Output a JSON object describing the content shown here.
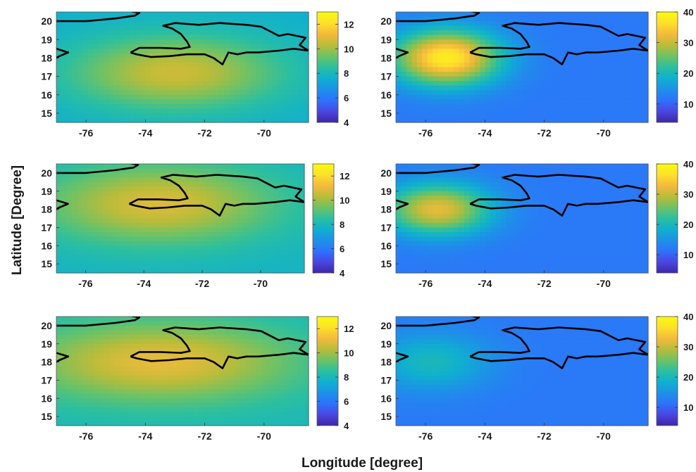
{
  "figure": {
    "xlabel": "Longitude [degree]",
    "ylabel": "Latitude [Degree]"
  },
  "chart_data": [
    {
      "type": "heatmap",
      "panel": "row1-left",
      "xlim": [
        -77,
        -68.5
      ],
      "ylim": [
        14.5,
        20.5
      ],
      "x_ticks": [
        "-76",
        "-74",
        "-72",
        "-70"
      ],
      "y_ticks": [
        "15",
        "16",
        "17",
        "18",
        "19",
        "20"
      ],
      "colorbar": {
        "min": 4,
        "max": 13,
        "ticks": [
          "4",
          "6",
          "8",
          "10",
          "12"
        ]
      },
      "field": {
        "base": 7.6,
        "peaks": [
          {
            "lon": -73.0,
            "lat": 17.2,
            "amp": 3.0,
            "sx": 3.5,
            "sy": 2.0
          }
        ]
      }
    },
    {
      "type": "heatmap",
      "panel": "row1-right",
      "xlim": [
        -77,
        -68.5
      ],
      "ylim": [
        14.5,
        20.5
      ],
      "x_ticks": [
        "-76",
        "-74",
        "-72",
        "-70"
      ],
      "y_ticks": [
        "15",
        "16",
        "17",
        "18",
        "19",
        "20"
      ],
      "colorbar": {
        "min": 4,
        "max": 40,
        "ticks": [
          "10",
          "20",
          "30",
          "40"
        ]
      },
      "field": {
        "base": 12,
        "peaks": [
          {
            "lon": -75.3,
            "lat": 18.0,
            "amp": 26,
            "sx": 1.8,
            "sy": 1.5
          }
        ]
      }
    },
    {
      "type": "heatmap",
      "panel": "row2-left",
      "xlim": [
        -77,
        -68.5
      ],
      "ylim": [
        14.5,
        20.5
      ],
      "x_ticks": [
        "-76",
        "-74",
        "-72",
        "-70"
      ],
      "y_ticks": [
        "15",
        "16",
        "17",
        "18",
        "19",
        "20"
      ],
      "colorbar": {
        "min": 4,
        "max": 13,
        "ticks": [
          "4",
          "6",
          "8",
          "10",
          "12"
        ]
      },
      "field": {
        "base": 7.8,
        "peaks": [
          {
            "lon": -73.5,
            "lat": 18.3,
            "amp": 3.0,
            "sx": 4.0,
            "sy": 2.2
          }
        ]
      }
    },
    {
      "type": "heatmap",
      "panel": "row2-right",
      "xlim": [
        -77,
        -68.5
      ],
      "ylim": [
        14.5,
        20.5
      ],
      "x_ticks": [
        "-76",
        "-74",
        "-72",
        "-70"
      ],
      "y_ticks": [
        "15",
        "16",
        "17",
        "18",
        "19",
        "20"
      ],
      "colorbar": {
        "min": 4,
        "max": 40,
        "ticks": [
          "10",
          "20",
          "30",
          "40"
        ]
      },
      "field": {
        "base": 12,
        "peaks": [
          {
            "lon": -75.6,
            "lat": 18.0,
            "amp": 20,
            "sx": 1.8,
            "sy": 1.4
          }
        ]
      }
    },
    {
      "type": "heatmap",
      "panel": "row3-left",
      "xlim": [
        -77,
        -68.5
      ],
      "ylim": [
        14.5,
        20.5
      ],
      "x_ticks": [
        "-76",
        "-74",
        "-72",
        "-70"
      ],
      "y_ticks": [
        "15",
        "16",
        "17",
        "18",
        "19",
        "20"
      ],
      "colorbar": {
        "min": 4,
        "max": 13,
        "ticks": [
          "4",
          "6",
          "8",
          "10",
          "12"
        ]
      },
      "field": {
        "base": 8.0,
        "peaks": [
          {
            "lon": -73.5,
            "lat": 18.0,
            "amp": 3.0,
            "sx": 4.5,
            "sy": 2.2
          }
        ]
      }
    },
    {
      "type": "heatmap",
      "panel": "row3-right",
      "xlim": [
        -77,
        -68.5
      ],
      "ylim": [
        14.5,
        20.5
      ],
      "x_ticks": [
        "-76",
        "-74",
        "-72",
        "-70"
      ],
      "y_ticks": [
        "15",
        "16",
        "17",
        "18",
        "19",
        "20"
      ],
      "colorbar": {
        "min": 4,
        "max": 40,
        "ticks": [
          "10",
          "20",
          "30",
          "40"
        ]
      },
      "field": {
        "base": 12,
        "peaks": [
          {
            "lon": -75.8,
            "lat": 18.0,
            "amp": 8,
            "sx": 2.0,
            "sy": 1.6
          }
        ]
      }
    }
  ],
  "coastlines": {
    "hispaniola": [
      [
        -74.5,
        18.3
      ],
      [
        -74.2,
        18.55
      ],
      [
        -73.5,
        18.55
      ],
      [
        -72.8,
        18.5
      ],
      [
        -72.5,
        18.6
      ],
      [
        -72.6,
        18.9
      ],
      [
        -72.8,
        19.3
      ],
      [
        -73.1,
        19.6
      ],
      [
        -73.4,
        19.75
      ],
      [
        -73.0,
        19.9
      ],
      [
        -72.2,
        19.8
      ],
      [
        -71.5,
        19.9
      ],
      [
        -70.6,
        19.8
      ],
      [
        -70.1,
        19.7
      ],
      [
        -69.5,
        19.2
      ],
      [
        -69.2,
        19.3
      ],
      [
        -68.6,
        19.1
      ],
      [
        -68.8,
        18.7
      ],
      [
        -68.5,
        18.4
      ],
      [
        -69.0,
        18.5
      ],
      [
        -69.5,
        18.4
      ],
      [
        -70.2,
        18.3
      ],
      [
        -70.6,
        18.3
      ],
      [
        -70.9,
        18.2
      ],
      [
        -71.2,
        18.3
      ],
      [
        -71.4,
        17.65
      ],
      [
        -71.7,
        18.0
      ],
      [
        -72.0,
        18.2
      ],
      [
        -72.6,
        18.2
      ],
      [
        -73.2,
        18.1
      ],
      [
        -73.8,
        18.05
      ],
      [
        -74.3,
        18.2
      ],
      [
        -74.5,
        18.3
      ]
    ],
    "cuba": [
      [
        -77.0,
        20.0
      ],
      [
        -76.0,
        20.0
      ],
      [
        -75.0,
        20.15
      ],
      [
        -74.35,
        20.3
      ],
      [
        -74.2,
        20.45
      ],
      [
        -74.7,
        20.6
      ],
      [
        -75.5,
        20.7
      ],
      [
        -77.0,
        20.6
      ]
    ],
    "jamaica": [
      [
        -77.0,
        18.5
      ],
      [
        -76.6,
        18.3
      ],
      [
        -76.9,
        18.1
      ],
      [
        -77.0,
        18.0
      ]
    ]
  },
  "style": {
    "colormap": [
      "#3e26a8",
      "#4a46e1",
      "#2e72fc",
      "#1d91e7",
      "#0fb0cf",
      "#2bbfa0",
      "#6ec265",
      "#b9bc3a",
      "#f4ba3c",
      "#fde02b",
      "#f9fb0e"
    ],
    "coast_color": "#000000",
    "frame_color": "#555555"
  }
}
